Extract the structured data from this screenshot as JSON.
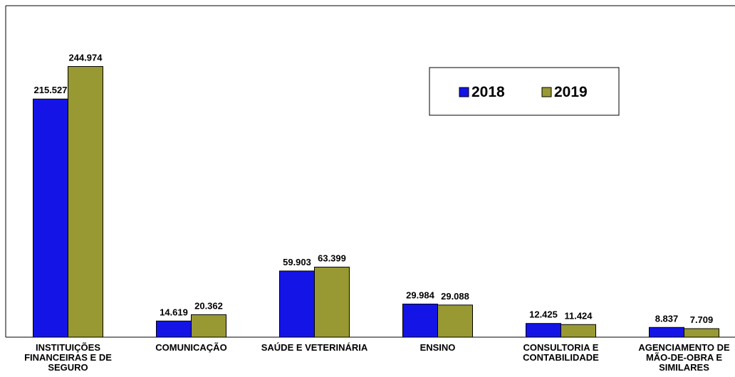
{
  "chart_data": {
    "type": "bar",
    "categories": [
      "INSTITUIÇÕES FINANCEIRAS E DE SEGURO",
      "COMUNICAÇÃO",
      "SAÚDE E VETERINÁRIA",
      "ENSINO",
      "CONSULTORIA E CONTABILIDADE",
      "AGENCIAMENTO DE MÃO-DE-OBRA E SIMILARES"
    ],
    "series": [
      {
        "name": "2018",
        "color": "#1414e6",
        "values": [
          215527,
          14619,
          59903,
          29984,
          12425,
          8837
        ],
        "value_labels": [
          "215.527",
          "14.619",
          "59.903",
          "29.984",
          "12.425",
          "8.837"
        ]
      },
      {
        "name": "2019",
        "color": "#999933",
        "values": [
          244974,
          20362,
          63399,
          29088,
          11424,
          7709
        ],
        "value_labels": [
          "244.974",
          "20.362",
          "63.399",
          "29.088",
          "11.424",
          "7.709"
        ]
      }
    ],
    "ylim": [
      0,
      300000
    ]
  }
}
